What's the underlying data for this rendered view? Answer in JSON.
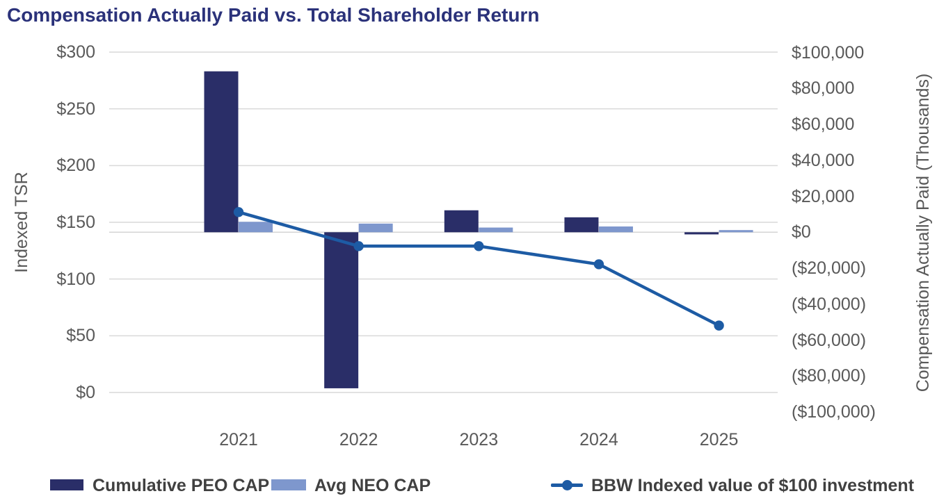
{
  "page": {
    "title": "Compensation Actually Paid vs. Total Shareholder Return"
  },
  "chart_data": {
    "type": "combo-bar-line-dual-axis",
    "title": "Compensation Actually Paid vs. Total Shareholder Return",
    "categories": [
      "2021",
      "2022",
      "2023",
      "2024",
      "2025"
    ],
    "series": [
      {
        "name": "Cumulative PEO CAP",
        "type": "bar",
        "axis": "right",
        "color": "#2a2e68",
        "values": [
          89500,
          -86800,
          12200,
          8300,
          -1200
        ]
      },
      {
        "name": "Avg NEO CAP",
        "type": "bar",
        "axis": "right",
        "color": "#7e97cd",
        "values": [
          5800,
          4800,
          2600,
          3200,
          1200
        ]
      },
      {
        "name": "BBW Indexed value of $100 investment",
        "type": "line",
        "axis": "left",
        "color": "#1d5ba4",
        "values": [
          159,
          129,
          129,
          113,
          59
        ]
      }
    ],
    "left_axis": {
      "title": "Indexed TSR",
      "min": 0,
      "max": 300,
      "ticks": [
        "$300",
        "$250",
        "$200",
        "$150",
        "$100",
        "$50",
        "$0"
      ]
    },
    "right_axis": {
      "title": "Compensation Actually Paid (Thousands)",
      "min": -100000,
      "max": 100000,
      "ticks": [
        "$100,000",
        "$80,000",
        "$60,000",
        "$40,000",
        "$20,000",
        "$0",
        "($20,000)",
        "($40,000)",
        "($60,000)",
        "($80,000)",
        "($100,000)"
      ]
    },
    "grid": true,
    "legend_position": "bottom",
    "gridline_color": "#d9d9d9",
    "baseline_color": "#d4d4d4"
  }
}
